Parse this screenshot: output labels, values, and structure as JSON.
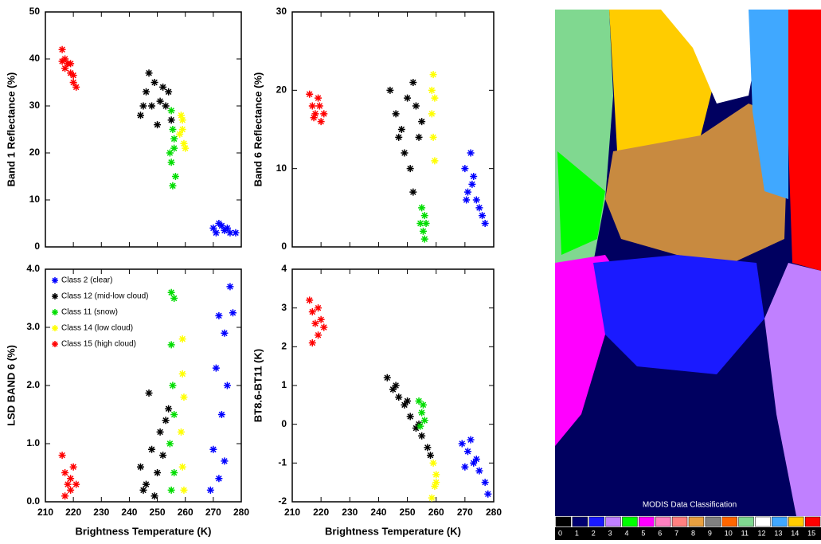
{
  "chart_data": [
    {
      "type": "scatter",
      "ylabel": "Band 1 Reflectance (%)",
      "xlim": [
        210,
        280
      ],
      "xticks": [
        210,
        220,
        230,
        240,
        250,
        260,
        270,
        280
      ],
      "ylim": [
        0,
        50
      ],
      "yticks": [
        0,
        10,
        20,
        30,
        40,
        50
      ],
      "series": [
        {
          "color": "#ff0000",
          "x": [
            216,
            217,
            218,
            219,
            220,
            221,
            217,
            219,
            216,
            220
          ],
          "values": [
            42,
            40,
            39,
            37,
            35,
            34,
            38,
            39,
            39.5,
            36.5
          ]
        },
        {
          "color": "#000000",
          "x": [
            244,
            246,
            247,
            249,
            251,
            253,
            255,
            250,
            248,
            252,
            245,
            254
          ],
          "values": [
            28,
            33,
            37,
            35,
            31,
            30,
            27,
            26,
            30,
            34,
            30,
            33
          ]
        },
        {
          "color": "#00dd00",
          "x": [
            255,
            255.5,
            256,
            255,
            256.5,
            255.5,
            256,
            254.5
          ],
          "values": [
            29,
            25,
            21,
            18,
            15,
            13,
            23,
            20
          ]
        },
        {
          "color": "#ffff00",
          "x": [
            258.5,
            259,
            259.5,
            258,
            260,
            259
          ],
          "values": [
            28,
            25,
            22,
            24,
            21,
            27
          ]
        },
        {
          "color": "#0000ff",
          "x": [
            270,
            272,
            274,
            276,
            278,
            273,
            271,
            275
          ],
          "values": [
            4,
            5,
            3.5,
            3,
            3,
            4.5,
            3,
            4
          ]
        }
      ]
    },
    {
      "type": "scatter",
      "ylabel": "Band 6 Reflectance (%)",
      "xlim": [
        210,
        280
      ],
      "xticks": [
        210,
        220,
        230,
        240,
        250,
        260,
        270,
        280
      ],
      "ylim": [
        0,
        30
      ],
      "yticks": [
        0,
        10,
        20,
        30
      ],
      "series": [
        {
          "color": "#ff0000",
          "x": [
            216,
            217,
            218,
            219,
            220,
            221,
            217.5,
            219.5
          ],
          "values": [
            19.5,
            18,
            17,
            19,
            16,
            17,
            16.5,
            18
          ]
        },
        {
          "color": "#000000",
          "x": [
            244,
            246,
            248,
            250,
            252,
            254,
            251,
            252,
            249,
            247,
            255,
            253
          ],
          "values": [
            20,
            17,
            15,
            19,
            21,
            14,
            10,
            7,
            12,
            14,
            16,
            18
          ]
        },
        {
          "color": "#ffff00",
          "x": [
            259,
            259.5,
            258.5,
            259,
            259.5,
            258.5
          ],
          "values": [
            22,
            19,
            17,
            14,
            11,
            20
          ]
        },
        {
          "color": "#00dd00",
          "x": [
            255,
            256,
            255.5,
            256,
            254.5,
            256.5
          ],
          "values": [
            5,
            4,
            2,
            1,
            3,
            3
          ]
        },
        {
          "color": "#0000ff",
          "x": [
            270,
            271,
            272,
            273,
            274,
            275,
            276,
            277,
            270.5,
            272.5
          ],
          "values": [
            10,
            7,
            12,
            9,
            6,
            5,
            4,
            3,
            6,
            8
          ]
        }
      ]
    },
    {
      "type": "scatter",
      "ylabel": "LSD BAND 6 (%)",
      "xlabel": "Brightness Temperature (K)",
      "legend": "upper left",
      "xlim": [
        210,
        280
      ],
      "xticks": [
        210,
        220,
        230,
        240,
        250,
        260,
        270,
        280
      ],
      "ylim": [
        0,
        4
      ],
      "yticks": [
        {
          "value": 0,
          "label": "0.0"
        },
        {
          "value": 1,
          "label": "1.0"
        },
        {
          "value": 2,
          "label": "2.0"
        },
        {
          "value": 3,
          "label": "3.0"
        },
        {
          "value": 4,
          "label": "4.0"
        }
      ],
      "series": [
        {
          "name": "Class 2 (clear)",
          "color": "#0000ff",
          "x": [
            276,
            277,
            272,
            274,
            271,
            275,
            273,
            270,
            272,
            269,
            274
          ],
          "values": [
            3.7,
            3.25,
            3.2,
            2.9,
            2.3,
            2.0,
            1.5,
            0.9,
            0.4,
            0.2,
            0.7
          ]
        },
        {
          "name": "Class 12 (mid-low cloud)",
          "color": "#000000",
          "x": [
            244,
            246,
            248,
            250,
            251,
            253,
            254,
            247,
            245,
            252,
            249
          ],
          "values": [
            0.6,
            0.3,
            0.9,
            0.5,
            1.2,
            1.4,
            1.6,
            1.87,
            0.2,
            0.8,
            0.1
          ]
        },
        {
          "name": "Class 11 (snow)",
          "color": "#00dd00",
          "x": [
            255,
            256,
            255,
            255.5,
            254.5,
            256,
            255,
            256
          ],
          "values": [
            3.6,
            3.5,
            2.7,
            2.0,
            1.0,
            0.5,
            0.2,
            1.5
          ]
        },
        {
          "name": "Class 14 (low cloud)",
          "color": "#ffff00",
          "x": [
            259,
            259,
            259.5,
            258.5,
            259,
            259.5
          ],
          "values": [
            2.8,
            2.2,
            1.8,
            1.2,
            0.6,
            0.2
          ]
        },
        {
          "name": "Class 15 (high cloud)",
          "color": "#ff0000",
          "x": [
            216,
            217,
            218,
            219,
            220,
            217,
            219,
            221
          ],
          "values": [
            0.8,
            0.5,
            0.3,
            0.2,
            0.6,
            0.1,
            0.4,
            0.3
          ]
        }
      ]
    },
    {
      "type": "scatter",
      "ylabel": "BT8.6-BT11 (K)",
      "xlabel": "Brightness Temperature (K)",
      "xlim": [
        210,
        280
      ],
      "xticks": [
        210,
        220,
        230,
        240,
        250,
        260,
        270,
        280
      ],
      "ylim": [
        -2,
        4
      ],
      "yticks": [
        -2,
        -1,
        0,
        1,
        2,
        3,
        4
      ],
      "series": [
        {
          "color": "#ff0000",
          "x": [
            216,
            217,
            218,
            219,
            220,
            221,
            217,
            219
          ],
          "values": [
            3.2,
            2.9,
            2.6,
            2.3,
            2.7,
            2.5,
            2.1,
            3.0
          ]
        },
        {
          "color": "#000000",
          "x": [
            243,
            245,
            247,
            249,
            251,
            253,
            255,
            257,
            258,
            246,
            250,
            254
          ],
          "values": [
            1.2,
            0.9,
            0.7,
            0.5,
            0.2,
            -0.1,
            -0.3,
            -0.6,
            -0.8,
            1.0,
            0.6,
            0.0
          ]
        },
        {
          "color": "#00dd00",
          "x": [
            254,
            255,
            256,
            255.5,
            254.5
          ],
          "values": [
            0.6,
            0.3,
            0.1,
            0.5,
            -0.05
          ]
        },
        {
          "color": "#ffff00",
          "x": [
            259,
            260,
            259.5,
            258.5,
            260
          ],
          "values": [
            -1.0,
            -1.3,
            -1.6,
            -1.9,
            -1.5
          ]
        },
        {
          "color": "#0000ff",
          "x": [
            269,
            271,
            273,
            275,
            277,
            278,
            270,
            272,
            274
          ],
          "values": [
            -0.5,
            -0.7,
            -1.0,
            -1.2,
            -1.5,
            -1.8,
            -1.1,
            -0.4,
            -0.9
          ]
        }
      ]
    }
  ],
  "classification_map": {
    "title": "MODIS Data Classification",
    "classes": [
      0,
      1,
      2,
      3,
      4,
      5,
      6,
      7,
      8,
      9,
      10,
      11,
      12,
      13,
      14,
      15
    ],
    "colors": [
      "#000000",
      "#000070",
      "#1a1aff",
      "#c080ff",
      "#00ff00",
      "#ff00ff",
      "#ff80c0",
      "#ff8080",
      "#e8a040",
      "#808080",
      "#ff6600",
      "#80d890",
      "#ffffff",
      "#40a8ff",
      "#ffcc00",
      "#ff0000"
    ]
  }
}
